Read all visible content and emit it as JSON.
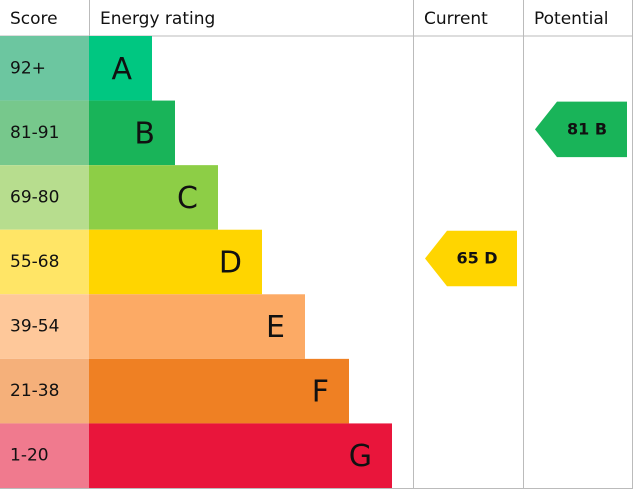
{
  "header": {
    "score": "Score",
    "rating": "Energy rating",
    "current": "Current",
    "potential": "Potential"
  },
  "bands": [
    {
      "score": "92+",
      "letter": "A",
      "color": "#00c781",
      "score_color": "#6cc6a0"
    },
    {
      "score": "81-91",
      "letter": "B",
      "color": "#19b459",
      "score_color": "#77c88c"
    },
    {
      "score": "69-80",
      "letter": "C",
      "color": "#8dce46",
      "score_color": "#b7dd8e"
    },
    {
      "score": "55-68",
      "letter": "D",
      "color": "#ffd500",
      "score_color": "#ffe566"
    },
    {
      "score": "39-54",
      "letter": "E",
      "color": "#fcaa65",
      "score_color": "#fec89a"
    },
    {
      "score": "21-38",
      "letter": "F",
      "color": "#ef8023",
      "score_color": "#f5b07a"
    },
    {
      "score": "1-20",
      "letter": "G",
      "color": "#e9153b",
      "score_color": "#f07a8e"
    }
  ],
  "current": {
    "value": 65,
    "letter": "D"
  },
  "potential": {
    "value": 81,
    "letter": "B"
  }
}
